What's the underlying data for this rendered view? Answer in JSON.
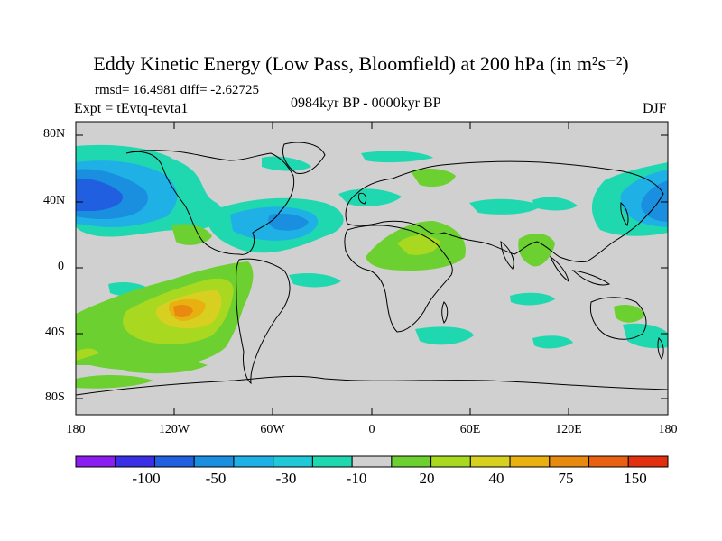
{
  "title": "Eddy Kinetic Energy (Low Pass, Bloomfield) at 200 hPa (in m²s⁻²)",
  "stats": "rmsd= 16.4981 diff= -2.62725",
  "experiment": "Expt = tEvtq-tevta1",
  "period": "0984kyr BP - 0000kyr BP",
  "season": "DJF",
  "map": {
    "lat_labels": [
      "80N",
      "40N",
      "0",
      "40S",
      "80S"
    ],
    "lon_labels": [
      "180",
      "120W",
      "60W",
      "0",
      "60E",
      "120E",
      "180"
    ]
  },
  "colorbar": {
    "labels": [
      "-100",
      "-50",
      "-30",
      "-10",
      "20",
      "40",
      "75",
      "150"
    ],
    "colors": [
      "#8a1df0",
      "#3a2fe6",
      "#1f5fe0",
      "#1a8fe0",
      "#1fb0e6",
      "#20c8d8",
      "#20d8b0",
      "#d0d0d0",
      "#6cd030",
      "#a8d820",
      "#d8d020",
      "#e8b010",
      "#e88a10",
      "#e86010",
      "#e03010"
    ]
  }
}
